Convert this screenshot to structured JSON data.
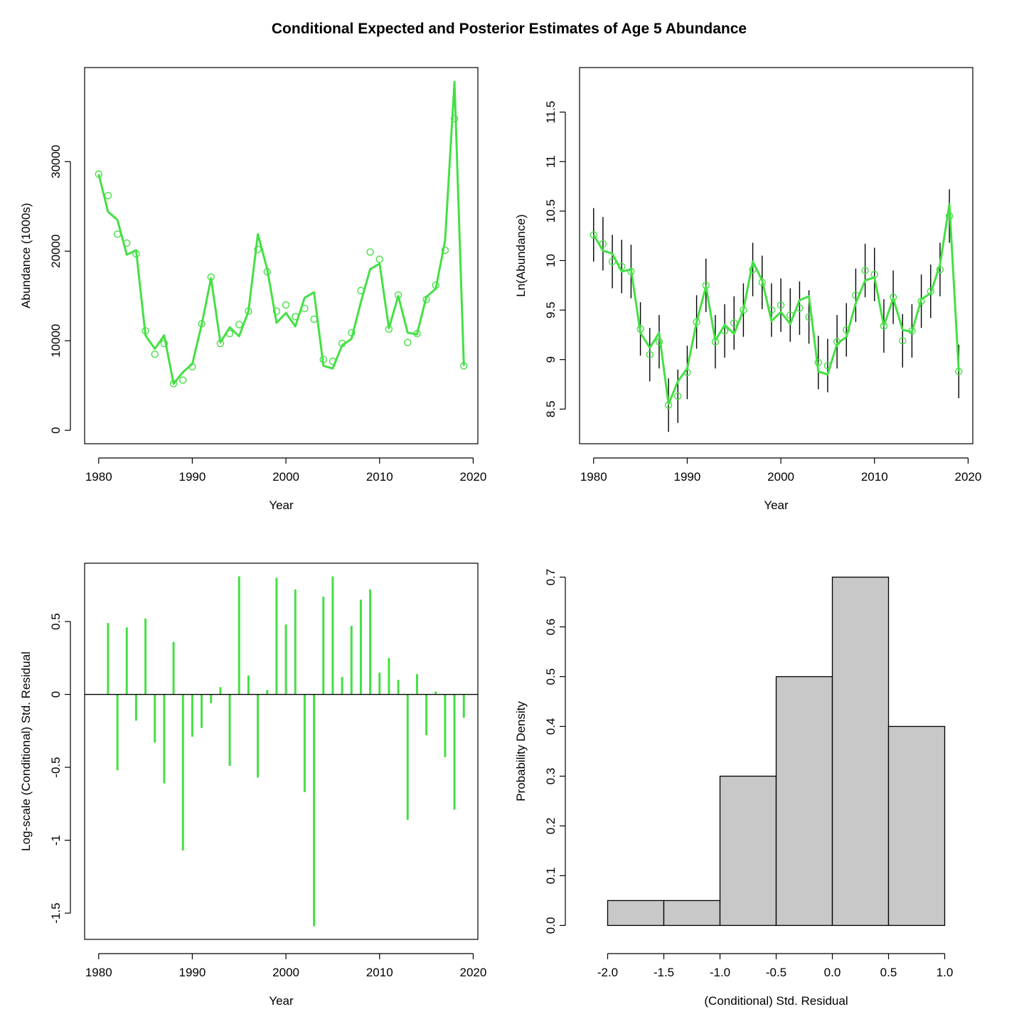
{
  "title": "Conditional Expected and Posterior Estimates of Age 5 Abundance",
  "colors": {
    "series": "#44e044",
    "hist_fill": "#c8c8c8",
    "axis": "#000000",
    "error_bar": "#000000"
  },
  "chart_data": [
    {
      "id": "abundance",
      "type": "line",
      "xlabel": "Year",
      "ylabel": "Abundance (1000s)",
      "xlim": [
        1978.5,
        2020.5
      ],
      "ylim": [
        -1500,
        40500
      ],
      "xticks": [
        1980,
        1990,
        2000,
        2010,
        2020
      ],
      "yticks": [
        0,
        10000,
        20000,
        30000
      ],
      "x": [
        1980,
        1981,
        1982,
        1983,
        1984,
        1985,
        1986,
        1987,
        1988,
        1989,
        1990,
        1991,
        1992,
        1993,
        1994,
        1995,
        1996,
        1997,
        1998,
        1999,
        2000,
        2001,
        2002,
        2003,
        2004,
        2005,
        2006,
        2007,
        2008,
        2009,
        2010,
        2011,
        2012,
        2013,
        2014,
        2015,
        2016,
        2017,
        2018,
        2019
      ],
      "line": [
        28600,
        24400,
        23500,
        19600,
        20100,
        10600,
        9100,
        10600,
        5200,
        6500,
        7400,
        11800,
        17000,
        9800,
        11500,
        10500,
        13300,
        21900,
        18000,
        12000,
        13100,
        11600,
        14800,
        15400,
        7200,
        6900,
        9500,
        10200,
        14300,
        18000,
        18600,
        11400,
        15000,
        10900,
        10700,
        14900,
        15800,
        21200,
        38900,
        7200
      ],
      "points": [
        28600,
        26200,
        21900,
        20900,
        19700,
        11100,
        8500,
        9700,
        5200,
        5600,
        7100,
        11900,
        17100,
        9700,
        10800,
        11800,
        13300,
        20200,
        17700,
        13300,
        14000,
        12700,
        13600,
        12400,
        7900,
        7700,
        9700,
        10900,
        15600,
        19900,
        19100,
        11300,
        15100,
        9800,
        10800,
        14600,
        16200,
        20100,
        34800,
        7200
      ],
      "show_grid": false
    },
    {
      "id": "log_abundance",
      "type": "line",
      "xlabel": "Year",
      "ylabel": "Ln(Abundance)",
      "xlim": [
        1978.5,
        2020.5
      ],
      "ylim": [
        8.15,
        11.95
      ],
      "xticks": [
        1980,
        1990,
        2000,
        2010,
        2020
      ],
      "yticks": [
        8.5,
        9.0,
        9.5,
        10.0,
        10.5,
        11.0,
        11.5
      ],
      "x": [
        1980,
        1981,
        1982,
        1983,
        1984,
        1985,
        1986,
        1987,
        1988,
        1989,
        1990,
        1991,
        1992,
        1993,
        1994,
        1995,
        1996,
        1997,
        1998,
        1999,
        2000,
        2001,
        2002,
        2003,
        2004,
        2005,
        2006,
        2007,
        2008,
        2009,
        2010,
        2011,
        2012,
        2013,
        2014,
        2015,
        2016,
        2017,
        2018,
        2019
      ],
      "line": [
        10.26,
        10.1,
        10.07,
        9.89,
        9.91,
        9.27,
        9.12,
        9.27,
        8.55,
        8.78,
        8.91,
        9.38,
        9.74,
        9.19,
        9.35,
        9.26,
        9.5,
        9.99,
        9.8,
        9.39,
        9.48,
        9.36,
        9.6,
        9.64,
        8.88,
        8.85,
        9.16,
        9.23,
        9.57,
        9.8,
        9.83,
        9.34,
        9.62,
        9.3,
        9.28,
        9.61,
        9.67,
        9.96,
        10.57,
        8.88
      ],
      "points": [
        10.26,
        10.17,
        9.99,
        9.94,
        9.89,
        9.31,
        9.05,
        9.18,
        8.54,
        8.63,
        8.87,
        9.38,
        9.75,
        9.18,
        9.29,
        9.37,
        9.5,
        9.91,
        9.78,
        9.5,
        9.55,
        9.45,
        9.52,
        9.43,
        8.97,
        8.94,
        9.18,
        9.3,
        9.65,
        9.9,
        9.86,
        9.34,
        9.63,
        9.19,
        9.29,
        9.59,
        9.69,
        9.91,
        10.45,
        8.88
      ],
      "error_bars": [
        [
          9.99,
          10.53
        ],
        [
          9.9,
          10.44
        ],
        [
          9.72,
          10.26
        ],
        [
          9.67,
          10.21
        ],
        [
          9.62,
          10.16
        ],
        [
          9.04,
          9.58
        ],
        [
          8.78,
          9.32
        ],
        [
          8.91,
          9.45
        ],
        [
          8.27,
          8.81
        ],
        [
          8.36,
          8.9
        ],
        [
          8.6,
          9.14
        ],
        [
          9.11,
          9.65
        ],
        [
          9.48,
          10.02
        ],
        [
          8.91,
          9.45
        ],
        [
          9.02,
          9.56
        ],
        [
          9.1,
          9.64
        ],
        [
          9.23,
          9.77
        ],
        [
          9.64,
          10.18
        ],
        [
          9.51,
          10.05
        ],
        [
          9.23,
          9.77
        ],
        [
          9.28,
          9.82
        ],
        [
          9.18,
          9.72
        ],
        [
          9.25,
          9.79
        ],
        [
          9.16,
          9.7
        ],
        [
          8.7,
          9.24
        ],
        [
          8.67,
          9.21
        ],
        [
          8.91,
          9.45
        ],
        [
          9.03,
          9.57
        ],
        [
          9.38,
          9.92
        ],
        [
          9.63,
          10.17
        ],
        [
          9.59,
          10.13
        ],
        [
          9.07,
          9.61
        ],
        [
          9.36,
          9.9
        ],
        [
          8.92,
          9.46
        ],
        [
          9.02,
          9.56
        ],
        [
          9.32,
          9.86
        ],
        [
          9.42,
          9.96
        ],
        [
          9.64,
          10.18
        ],
        [
          10.18,
          10.72
        ],
        [
          8.61,
          9.15
        ]
      ],
      "show_grid": false
    },
    {
      "id": "residuals",
      "type": "bar",
      "xlabel": "Year",
      "ylabel": "Log-scale (Conditional) Std. Residual",
      "xlim": [
        1978.5,
        2020.5
      ],
      "ylim": [
        -1.68,
        0.9
      ],
      "xticks": [
        1980,
        1990,
        2000,
        2010,
        2020
      ],
      "yticks": [
        -1.5,
        -1.0,
        -0.5,
        0.0,
        0.5
      ],
      "x": [
        1981,
        1982,
        1983,
        1984,
        1985,
        1986,
        1987,
        1988,
        1989,
        1990,
        1991,
        1992,
        1993,
        1994,
        1995,
        1996,
        1997,
        1998,
        1999,
        2000,
        2001,
        2002,
        2003,
        2004,
        2005,
        2006,
        2007,
        2008,
        2009,
        2010,
        2011,
        2012,
        2013,
        2014,
        2015,
        2016,
        2017,
        2018,
        2019
      ],
      "values": [
        0.49,
        -0.52,
        0.46,
        -0.18,
        0.52,
        -0.33,
        -0.61,
        0.36,
        -1.07,
        -0.29,
        -0.23,
        -0.06,
        0.05,
        -0.49,
        0.81,
        0.13,
        -0.57,
        0.03,
        0.8,
        0.48,
        0.72,
        -0.67,
        -1.59,
        0.67,
        0.81,
        0.12,
        0.47,
        0.65,
        0.72,
        0.15,
        0.25,
        0.1,
        -0.86,
        0.14,
        -0.28,
        0.02,
        -0.43,
        -0.79,
        -0.16
      ],
      "show_grid": false
    },
    {
      "id": "histogram",
      "type": "bar",
      "xlabel": "(Conditional) Std. Residual",
      "ylabel": "Probability Density",
      "xlim": [
        -2.25,
        1.25
      ],
      "ylim": [
        -0.028,
        0.728
      ],
      "xticks": [
        -2.0,
        -1.5,
        -1.0,
        -0.5,
        0.0,
        0.5,
        1.0
      ],
      "xtick_labels": [
        "-2.0",
        "-1.5",
        "-1.0",
        "-0.5",
        "0.0",
        "0.5",
        "1.0"
      ],
      "yticks": [
        0.0,
        0.1,
        0.2,
        0.3,
        0.4,
        0.5,
        0.6,
        0.7
      ],
      "ytick_labels": [
        "0.0",
        "0.1",
        "0.2",
        "0.3",
        "0.4",
        "0.5",
        "0.6",
        "0.7"
      ],
      "bins": [
        [
          -2.0,
          -1.5
        ],
        [
          -1.5,
          -1.0
        ],
        [
          -1.0,
          -0.5
        ],
        [
          -0.5,
          0.0
        ],
        [
          0.0,
          0.5
        ],
        [
          0.5,
          1.0
        ]
      ],
      "values": [
        0.05,
        0.05,
        0.3,
        0.5,
        0.7,
        0.4
      ],
      "show_grid": false
    }
  ]
}
